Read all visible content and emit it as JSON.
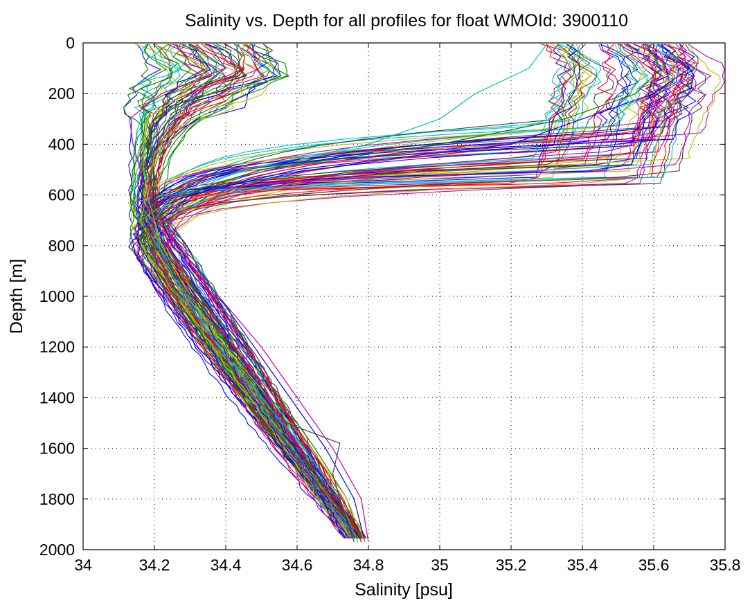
{
  "chart_data": {
    "type": "line",
    "title": "Salinity vs. Depth for all profiles for float WMOId: 3900110",
    "xlabel": "Salinity [psu]",
    "ylabel": "Depth [m]",
    "xlim": [
      34,
      35.8
    ],
    "ylim": [
      0,
      2000
    ],
    "y_reversed": true,
    "grid": true,
    "grid_style": "dotted",
    "x_ticks": [
      34,
      34.2,
      34.4,
      34.6,
      34.8,
      35,
      35.2,
      35.4,
      35.6,
      35.8
    ],
    "x_tick_labels": [
      "34",
      "34.2",
      "34.4",
      "34.6",
      "34.8",
      "35",
      "35.2",
      "35.4",
      "35.6",
      "35.8"
    ],
    "y_ticks": [
      0,
      200,
      400,
      600,
      800,
      1000,
      1200,
      1400,
      1600,
      1800,
      2000
    ],
    "y_tick_labels": [
      "0",
      "200",
      "400",
      "600",
      "800",
      "1000",
      "1200",
      "1400",
      "1600",
      "1800",
      "2000"
    ],
    "series_colors": [
      "#0000ff",
      "#008000",
      "#ff0000",
      "#00bfbf",
      "#bf00bf",
      "#bfbf00",
      "#404040"
    ],
    "profile_count_estimate": 120,
    "representative_profiles": [
      {
        "color": "#0000ff",
        "depth": [
          5,
          100,
          200,
          300,
          400,
          500,
          600,
          700,
          800,
          1000,
          1200,
          1400,
          1600,
          1800,
          1970
        ],
        "salinity": [
          35.62,
          35.7,
          35.6,
          35.4,
          35.2,
          34.6,
          34.3,
          34.22,
          34.25,
          34.38,
          34.48,
          34.58,
          34.68,
          34.76,
          34.79
        ]
      },
      {
        "color": "#008000",
        "depth": [
          5,
          100,
          200,
          300,
          400,
          500,
          600,
          700,
          800,
          1000,
          1200,
          1400,
          1600,
          1800,
          1970
        ],
        "salinity": [
          35.58,
          35.62,
          35.55,
          35.35,
          35.0,
          34.5,
          34.27,
          34.2,
          34.22,
          34.33,
          34.44,
          34.55,
          34.65,
          34.74,
          34.78
        ]
      },
      {
        "color": "#ff0000",
        "depth": [
          5,
          100,
          200,
          300,
          400,
          500,
          600,
          700,
          800,
          1000,
          1200,
          1400,
          1600,
          1800,
          1970
        ],
        "salinity": [
          34.3,
          34.45,
          34.3,
          34.2,
          34.18,
          34.18,
          34.2,
          34.22,
          34.24,
          34.3,
          34.42,
          34.54,
          34.64,
          34.73,
          34.78
        ]
      },
      {
        "color": "#00bfbf",
        "depth": [
          5,
          100,
          200,
          300,
          400,
          500,
          600,
          700,
          800,
          1000,
          1200,
          1400,
          1600,
          1800,
          1970
        ],
        "salinity": [
          35.3,
          35.25,
          35.1,
          35.0,
          34.8,
          34.45,
          34.25,
          34.2,
          34.21,
          34.28,
          34.38,
          34.5,
          34.62,
          34.72,
          34.77
        ]
      },
      {
        "color": "#bf00bf",
        "depth": [
          5,
          100,
          200,
          300,
          400,
          500,
          600,
          700,
          800,
          1000,
          1200,
          1400,
          1600,
          1800,
          1970
        ],
        "salinity": [
          34.35,
          34.4,
          34.22,
          34.13,
          34.14,
          34.16,
          34.18,
          34.2,
          34.25,
          34.38,
          34.5,
          34.6,
          34.7,
          34.78,
          34.8
        ]
      },
      {
        "color": "#bfbf00",
        "depth": [
          5,
          100,
          200,
          300,
          400,
          500,
          600,
          700,
          800,
          1000,
          1200,
          1400,
          1600,
          1800,
          1970
        ],
        "salinity": [
          34.2,
          34.35,
          34.28,
          34.18,
          34.17,
          34.17,
          34.18,
          34.2,
          34.22,
          34.3,
          34.4,
          34.52,
          34.64,
          34.74,
          34.79
        ]
      },
      {
        "color": "#404040",
        "depth": [
          5,
          100,
          200,
          300,
          400,
          500,
          600,
          700,
          800,
          1000,
          1200,
          1400,
          1500,
          1580,
          1700,
          1800,
          1970
        ],
        "salinity": [
          34.3,
          34.4,
          34.3,
          34.2,
          34.18,
          34.18,
          34.2,
          34.17,
          34.2,
          34.3,
          34.42,
          34.52,
          34.57,
          34.72,
          34.7,
          34.72,
          34.76
        ]
      }
    ]
  }
}
